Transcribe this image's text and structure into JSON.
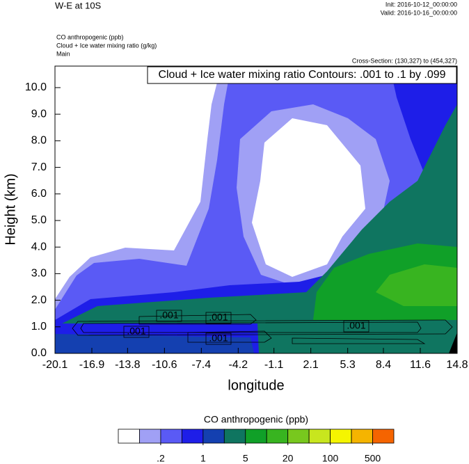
{
  "chart_data": {
    "type": "contour",
    "title": "W-E at 10S",
    "init": "Init: 2016-10-12_00:00:00",
    "valid": "Valid: 2016-10-16_00:00:00",
    "fields": [
      "CO anthropogenic   (ppb)",
      "Cloud + Ice water mixing ratio   (g/kg)",
      "Main"
    ],
    "cross_section": "Cross-Section: (130,327) to (454,327)",
    "contour_info": "Cloud + Ice water mixing ratio Contours: .001 to .1 by .099",
    "contour_labels": [
      ".001",
      ".001",
      ".001",
      ".001",
      ".001"
    ],
    "x_label": "longitude",
    "y_label": "Height (km)",
    "xlim": [
      -20.1,
      14.8
    ],
    "ylim": [
      0,
      10.81
    ],
    "xticks": [
      -20.1,
      -16.9,
      -13.8,
      -10.6,
      -7.4,
      -4.2,
      -1.1,
      2.1,
      5.3,
      8.4,
      11.6,
      14.8
    ],
    "yticks": [
      {
        "value": 0,
        "label": "0.0"
      },
      {
        "value": 1,
        "label": "1.0"
      },
      {
        "value": 2,
        "label": "2.0"
      },
      {
        "value": 3,
        "label": "3.0"
      },
      {
        "value": 4,
        "label": "4.0"
      },
      {
        "value": 5,
        "label": "5.0"
      },
      {
        "value": 6,
        "label": "6.0"
      },
      {
        "value": 7,
        "label": "7.0"
      },
      {
        "value": 8,
        "label": "8.0"
      },
      {
        "value": 9,
        "label": "9.0"
      },
      {
        "value": 10,
        "label": "10.0"
      }
    ],
    "colorbar": {
      "title": "CO anthropogenic  (ppb)",
      "colors": [
        "#ffffff",
        "#a0a0f5",
        "#5a5af5",
        "#1e1ee8",
        "#1440b0",
        "#0f7560",
        "#10a028",
        "#38b420",
        "#78c81e",
        "#c8e61e",
        "#f5f500",
        "#f5b400",
        "#f56400",
        "#f51414"
      ],
      "ticks": [
        {
          "value": 0.2,
          "label": ".2"
        },
        1,
        5,
        20,
        100,
        500
      ]
    }
  }
}
